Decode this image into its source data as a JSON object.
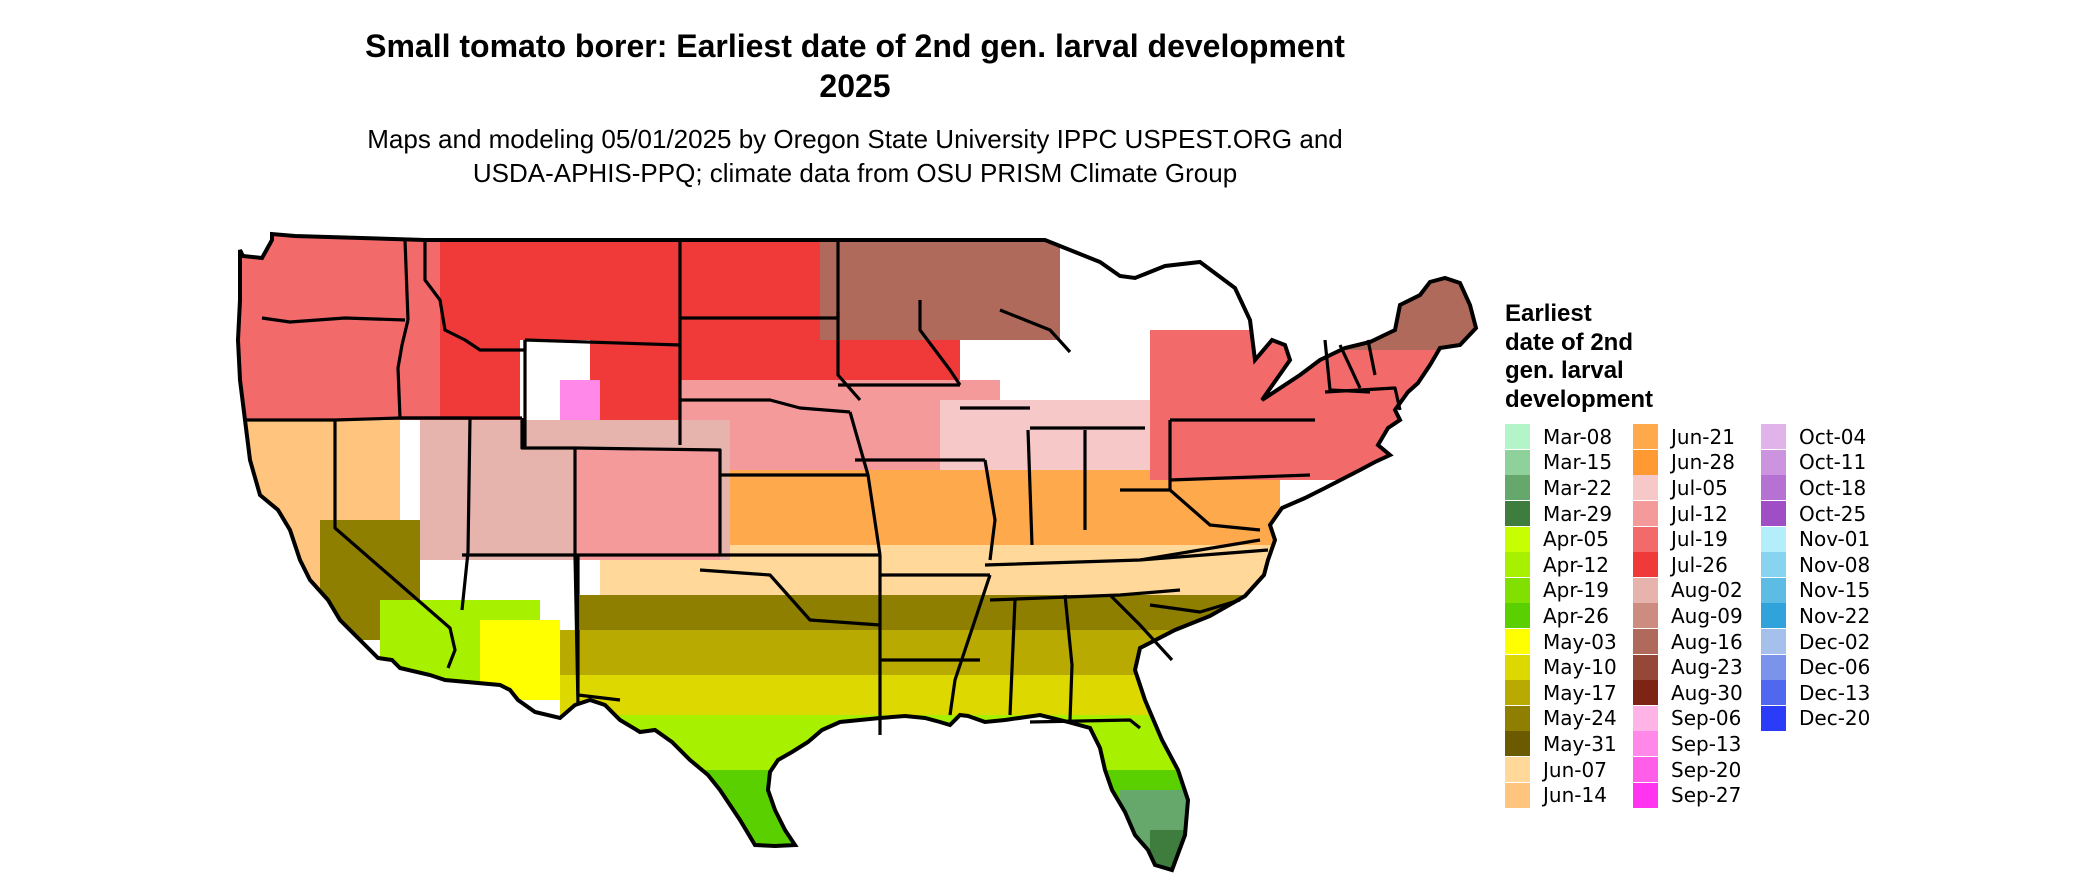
{
  "title_line1": "Small tomato borer: Earliest date of 2nd gen. larval development",
  "title_line2": "2025",
  "subtitle_line1": "Maps and modeling 05/01/2025 by Oregon State University IPPC USPEST.ORG and",
  "subtitle_line2": "USDA-APHIS-PPQ; climate data from OSU PRISM Climate Group",
  "legend": {
    "title_lines": [
      "Earliest",
      "date of 2nd",
      "gen. larval",
      "development"
    ],
    "columns": [
      [
        {
          "label": "Mar-08",
          "color": "#b3f5c8"
        },
        {
          "label": "Mar-15",
          "color": "#8fd19a"
        },
        {
          "label": "Mar-22",
          "color": "#66a86b"
        },
        {
          "label": "Mar-29",
          "color": "#3e7d3e"
        },
        {
          "label": "Apr-05",
          "color": "#c8ff00"
        },
        {
          "label": "Apr-12",
          "color": "#a6f000"
        },
        {
          "label": "Apr-19",
          "color": "#82e000"
        },
        {
          "label": "Apr-26",
          "color": "#5ad000"
        },
        {
          "label": "May-03",
          "color": "#ffff00"
        },
        {
          "label": "May-10",
          "color": "#dcd800"
        },
        {
          "label": "May-17",
          "color": "#b8aa00"
        },
        {
          "label": "May-24",
          "color": "#8f7f00"
        },
        {
          "label": "May-31",
          "color": "#6b5a00"
        },
        {
          "label": "Jun-07",
          "color": "#ffd89a"
        },
        {
          "label": "Jun-14",
          "color": "#ffc47e"
        }
      ],
      [
        {
          "label": "Jun-21",
          "color": "#ffa94d"
        },
        {
          "label": "Jun-28",
          "color": "#ff9a33"
        },
        {
          "label": "Jul-05",
          "color": "#f6c8c8"
        },
        {
          "label": "Jul-12",
          "color": "#f49a9a"
        },
        {
          "label": "Jul-19",
          "color": "#f26a6a"
        },
        {
          "label": "Jul-26",
          "color": "#f03a3a"
        },
        {
          "label": "Aug-02",
          "color": "#e6b4ac"
        },
        {
          "label": "Aug-09",
          "color": "#cc8c80"
        },
        {
          "label": "Aug-16",
          "color": "#b06a5c"
        },
        {
          "label": "Aug-23",
          "color": "#964838"
        },
        {
          "label": "Aug-30",
          "color": "#7d2414"
        },
        {
          "label": "Sep-06",
          "color": "#ffb3e6"
        },
        {
          "label": "Sep-13",
          "color": "#ff88e8"
        },
        {
          "label": "Sep-20",
          "color": "#ff5ee8"
        },
        {
          "label": "Sep-27",
          "color": "#ff33f0"
        }
      ],
      [
        {
          "label": "Oct-04",
          "color": "#e0b4ea"
        },
        {
          "label": "Oct-11",
          "color": "#cc94de"
        },
        {
          "label": "Oct-18",
          "color": "#b672d2"
        },
        {
          "label": "Oct-25",
          "color": "#a04ec6"
        },
        {
          "label": "Nov-01",
          "color": "#b4eefa"
        },
        {
          "label": "Nov-08",
          "color": "#88d4f0"
        },
        {
          "label": "Nov-15",
          "color": "#5cbce4"
        },
        {
          "label": "Nov-22",
          "color": "#30a4da"
        },
        {
          "label": "Dec-02",
          "color": "#a6c0ec"
        },
        {
          "label": "Dec-06",
          "color": "#7a94ec"
        },
        {
          "label": "Dec-13",
          "color": "#5068f0"
        },
        {
          "label": "Dec-20",
          "color": "#2a3cf8"
        }
      ]
    ]
  },
  "map": {
    "regions": [
      {
        "name": "pacific-northwest",
        "color": "#f26a6a"
      },
      {
        "name": "northern-plains",
        "color": "#f03a3a"
      },
      {
        "name": "upper-midwest",
        "color": "#b06a5c"
      },
      {
        "name": "central-plains",
        "color": "#f49a9a"
      },
      {
        "name": "midwest-transition",
        "color": "#f6c8c8"
      },
      {
        "name": "mid-south",
        "color": "#ffa94d"
      },
      {
        "name": "upper-south",
        "color": "#ffd89a"
      },
      {
        "name": "deep-south-north",
        "color": "#8f7f00"
      },
      {
        "name": "deep-south",
        "color": "#b8aa00"
      },
      {
        "name": "gulf-belt",
        "color": "#dcd800"
      },
      {
        "name": "gulf-coast",
        "color": "#a6f000"
      },
      {
        "name": "gulf-coast-tip",
        "color": "#5ad000"
      },
      {
        "name": "southern-florida",
        "color": "#66a86b"
      },
      {
        "name": "florida-keys",
        "color": "#3e7d3e"
      },
      {
        "name": "northeast",
        "color": "#f26a6a"
      },
      {
        "name": "new-england-north",
        "color": "#b06a5c"
      },
      {
        "name": "great-basin",
        "color": "#e6b4ac"
      },
      {
        "name": "rocky-mountains",
        "color": "#ffffff"
      },
      {
        "name": "california-valley",
        "color": "#ffc47e"
      },
      {
        "name": "california-central",
        "color": "#8f7f00"
      },
      {
        "name": "southwest-desert",
        "color": "#a6f000"
      },
      {
        "name": "arizona-lowland",
        "color": "#ffff00"
      },
      {
        "name": "new-mexico-highland",
        "color": "#f49a9a"
      },
      {
        "name": "alpine-pockets",
        "color": "#ff88e8"
      }
    ],
    "border_color": "#000000"
  }
}
